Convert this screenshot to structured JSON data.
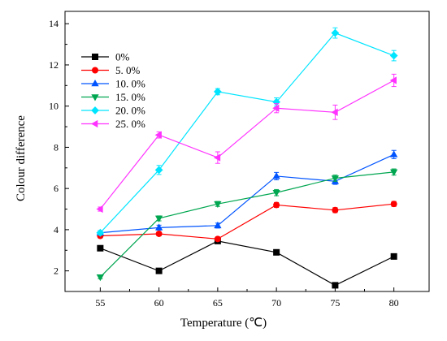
{
  "chart_data": {
    "type": "line",
    "xlabel": "Temperature (℃)",
    "ylabel": "Colour difference",
    "x": [
      55,
      60,
      65,
      70,
      75,
      80
    ],
    "xlim": [
      52,
      83
    ],
    "ylim": [
      1,
      14.6
    ],
    "x_ticks": [
      55,
      60,
      65,
      70,
      75,
      80
    ],
    "y_ticks": [
      2,
      4,
      6,
      8,
      10,
      12,
      14
    ],
    "grid": false,
    "legend_position": "top-left",
    "series": [
      {
        "name": "0%",
        "color": "#000000",
        "marker": "square",
        "values": [
          3.1,
          2.0,
          3.45,
          2.9,
          1.3,
          2.7
        ],
        "errors": [
          0.1,
          0.08,
          0.1,
          0.08,
          0.08,
          0.1
        ]
      },
      {
        "name": "5. 0%",
        "color": "#ff0000",
        "marker": "circle",
        "values": [
          3.7,
          3.8,
          3.55,
          5.2,
          4.95,
          5.25
        ],
        "errors": [
          0.1,
          0.1,
          0.1,
          0.12,
          0.12,
          0.12
        ]
      },
      {
        "name": "10. 0%",
        "color": "#0054ff",
        "marker": "triangle-up",
        "values": [
          3.85,
          4.1,
          4.2,
          6.6,
          6.35,
          7.65
        ],
        "errors": [
          0.1,
          0.12,
          0.12,
          0.18,
          0.15,
          0.2
        ]
      },
      {
        "name": "15. 0%",
        "color": "#00a650",
        "marker": "triangle-down",
        "values": [
          1.7,
          4.55,
          5.25,
          5.8,
          6.5,
          6.8
        ],
        "errors": [
          0.08,
          0.12,
          0.12,
          0.15,
          0.15,
          0.15
        ]
      },
      {
        "name": "20. 0%",
        "color": "#00e5ff",
        "marker": "diamond",
        "values": [
          3.85,
          6.9,
          10.7,
          10.2,
          13.55,
          12.45
        ],
        "errors": [
          0.1,
          0.22,
          0.15,
          0.2,
          0.25,
          0.25
        ]
      },
      {
        "name": "25. 0%",
        "color": "#ff33ff",
        "marker": "triangle-left",
        "values": [
          5.0,
          8.6,
          7.5,
          9.9,
          9.7,
          11.25
        ],
        "errors": [
          0.1,
          0.15,
          0.28,
          0.22,
          0.35,
          0.3
        ]
      }
    ]
  }
}
